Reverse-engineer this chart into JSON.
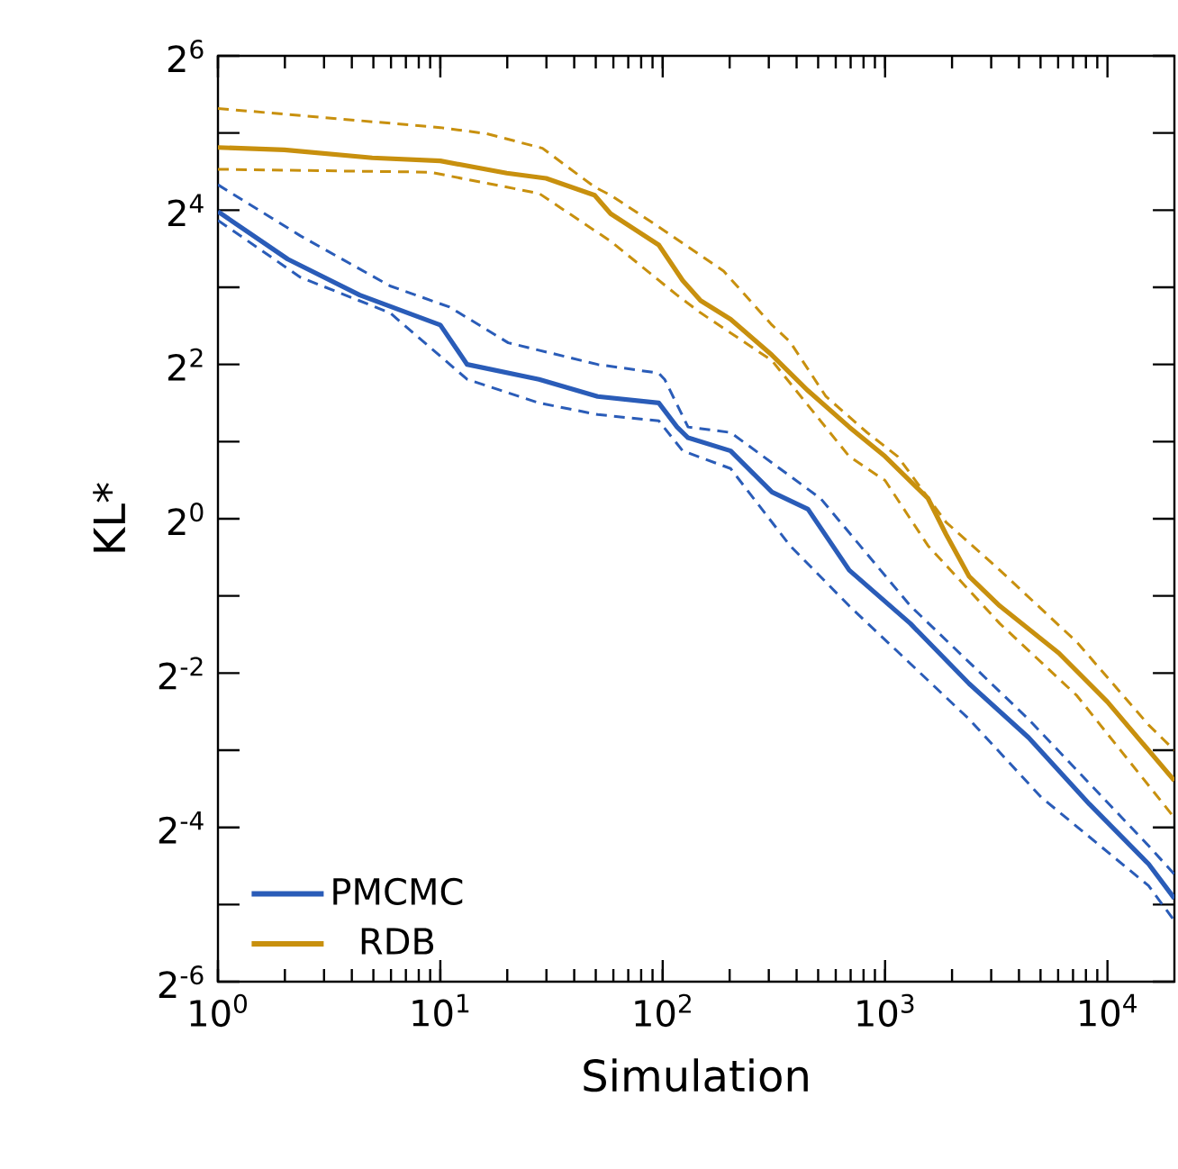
{
  "chart_data": {
    "type": "line",
    "log": "xy",
    "xlabel": "Simulation",
    "ylabel": "KL*",
    "legend": "bottom left",
    "xlim": [
      1,
      20000
    ],
    "ylim": [
      0.015625,
      64
    ],
    "xticks": [
      {
        "value": 1,
        "label": "10$^{0}$"
      },
      {
        "value": 10,
        "label": "10$^{1}$"
      },
      {
        "value": 100,
        "label": "10$^{2}$"
      },
      {
        "value": 1000,
        "label": "10$^{3}$"
      },
      {
        "value": 10000,
        "label": "10$^{4}$"
      }
    ],
    "yticks": [
      {
        "value": 0.015625,
        "label": "2$^{-6}$"
      },
      {
        "value": 0.03125,
        "label": null
      },
      {
        "value": 0.0625,
        "label": "2$^{-4}$"
      },
      {
        "value": 0.125,
        "label": null
      },
      {
        "value": 0.25,
        "label": "2$^{-2}$"
      },
      {
        "value": 0.5,
        "label": null
      },
      {
        "value": 1,
        "label": "2$^{0}$"
      },
      {
        "value": 2,
        "label": null
      },
      {
        "value": 4,
        "label": "2$^{2}$"
      },
      {
        "value": 8,
        "label": null
      },
      {
        "value": 16,
        "label": "2$^{4}$"
      },
      {
        "value": 32,
        "label": null
      },
      {
        "value": 64,
        "label": "2$^{6}$"
      }
    ],
    "series": [
      {
        "name": "PMCMC",
        "color": "#2a5cb8",
        "line_style": "solid",
        "x": [
          1,
          2.06,
          4.34,
          10,
          13.2,
          27.8,
          51,
          96,
          116,
          130,
          202,
          310,
          450,
          690,
          1300,
          2390,
          4420,
          8300,
          15300,
          20000
        ],
        "values": [
          15.8,
          10.3,
          7.46,
          5.7,
          4.0,
          3.5,
          3.0,
          2.83,
          2.28,
          2.07,
          1.84,
          1.27,
          1.09,
          0.63,
          0.39,
          0.227,
          0.14,
          0.077,
          0.045,
          0.033
        ]
      },
      {
        "name": "RDB",
        "color": "#c8900e",
        "line_style": "solid",
        "x": [
          1,
          1.99,
          4.94,
          10,
          19.9,
          29.9,
          49.4,
          58.3,
          96,
          123,
          148,
          202,
          310,
          450,
          690,
          1000,
          1560,
          1880,
          2390,
          3280,
          6050,
          10000,
          20000
        ],
        "values": [
          28.1,
          27.5,
          25.6,
          24.9,
          22.3,
          21.3,
          18.3,
          15.5,
          11.7,
          8.5,
          7.1,
          6.0,
          4.35,
          3.16,
          2.28,
          1.75,
          1.2,
          0.87,
          0.595,
          0.457,
          0.299,
          0.193,
          0.095
        ]
      },
      {
        "color": "#2a5cb8",
        "line_style": "dashed",
        "x": [
          1,
          2.35,
          5.94,
          11,
          20.2,
          51,
          96,
          102,
          130,
          202,
          513,
          1300,
          4420,
          15300,
          20000
        ],
        "values": [
          20.1,
          12.7,
          8.1,
          6.7,
          4.86,
          4.0,
          3.7,
          3.5,
          2.28,
          2.17,
          1.2,
          0.457,
          0.165,
          0.053,
          0.041
        ]
      },
      {
        "color": "#2a5cb8",
        "line_style": "dashed",
        "x": [
          1,
          2.35,
          5.94,
          13.2,
          27.8,
          51,
          96,
          123,
          202,
          374,
          690,
          2390,
          5030,
          15300,
          20000
        ],
        "values": [
          14.6,
          8.75,
          6.36,
          3.5,
          2.83,
          2.55,
          2.41,
          1.84,
          1.57,
          0.785,
          0.457,
          0.165,
          0.082,
          0.037,
          0.027
        ]
      },
      {
        "color": "#c8900e",
        "line_style": "dashed",
        "x": [
          1,
          10,
          16.2,
          28.8,
          49.4,
          58.3,
          91,
          188,
          310,
          374,
          542,
          830,
          1140,
          1880,
          3280,
          7290,
          15300,
          20000
        ],
        "values": [
          39.9,
          33.6,
          31.8,
          27.9,
          19.7,
          18.3,
          14.2,
          9.25,
          5.7,
          4.9,
          3.0,
          2.17,
          1.75,
          0.97,
          0.63,
          0.33,
          0.157,
          0.125
        ]
      },
      {
        "color": "#c8900e",
        "line_style": "dashed",
        "x": [
          1,
          9,
          23,
          27.8,
          58.3,
          116,
          148,
          310,
          690,
          1000,
          1560,
          3280,
          7290,
          19500
        ],
        "values": [
          23.1,
          22.5,
          19.2,
          18.6,
          12.1,
          7.46,
          6.36,
          4.14,
          1.75,
          1.41,
          0.785,
          0.39,
          0.204,
          0.07
        ]
      }
    ]
  }
}
